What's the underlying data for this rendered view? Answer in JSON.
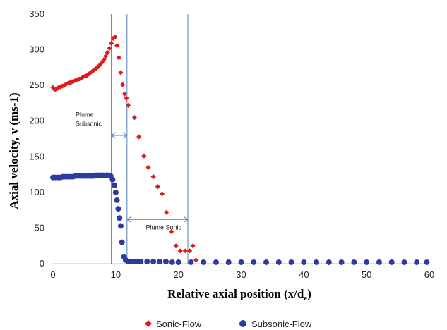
{
  "chart_data": {
    "type": "scatter",
    "xlabel_main": "Relative axial position (x/d",
    "xlabel_sub": "e",
    "xlabel_end": ")",
    "ylabel": "Axial velocity, v (ms-1)",
    "xlim": [
      0,
      60
    ],
    "ylim": [
      0,
      350
    ],
    "x_ticks": [
      "0",
      "10",
      "20",
      "30",
      "40",
      "50",
      "60"
    ],
    "y_ticks": [
      "0",
      "50",
      "100",
      "150",
      "200",
      "250",
      "300",
      "350"
    ],
    "grid": false,
    "legend_position": "bottom",
    "vertical_lines_x": [
      9.3,
      11.8,
      21.5
    ],
    "annotations": [
      {
        "text_lines": [
          "Plume",
          "Subsonic"
        ],
        "x": 3.6,
        "y": 206
      },
      {
        "text_lines": [
          "Plume Sonic"
        ],
        "x": 14.8,
        "y": 48
      }
    ],
    "arrows": [
      {
        "from": [
          9.3,
          180
        ],
        "to": [
          11.8,
          180
        ]
      },
      {
        "from": [
          11.8,
          62
        ],
        "to": [
          21.5,
          62
        ]
      }
    ],
    "series": [
      {
        "name": "Sonic-Flow",
        "marker": "diamond",
        "color": "#e31a1c",
        "x": [
          0.0,
          0.3,
          0.6,
          0.9,
          1.2,
          1.5,
          1.8,
          2.1,
          2.4,
          2.7,
          3.0,
          3.3,
          3.6,
          3.9,
          4.2,
          4.5,
          4.8,
          5.1,
          5.4,
          5.7,
          6.0,
          6.3,
          6.6,
          6.9,
          7.2,
          7.5,
          7.8,
          8.1,
          8.4,
          8.7,
          9.0,
          9.3,
          9.6,
          9.9,
          10.2,
          10.5,
          10.8,
          11.1,
          11.4,
          11.7,
          12.0,
          13.0,
          13.7,
          14.5,
          15.2,
          16.0,
          16.7,
          17.4,
          18.1,
          18.9,
          19.6,
          20.3,
          21.1,
          21.8,
          22.3,
          22.8
        ],
        "y": [
          247,
          244,
          245,
          247,
          248,
          249,
          250,
          252,
          253,
          254,
          255,
          256,
          257,
          258,
          259,
          260,
          262,
          263,
          264,
          266,
          268,
          270,
          272,
          274,
          276,
          279,
          282,
          286,
          291,
          296,
          302,
          309,
          316,
          318,
          306,
          289,
          268,
          251,
          238,
          232,
          222,
          205,
          178,
          151,
          135,
          122,
          108,
          98,
          72,
          45,
          25,
          18,
          18,
          18,
          25,
          5
        ]
      },
      {
        "name": "Subsonic-Flow",
        "marker": "circle",
        "color": "#2f3aa0",
        "x": [
          0.0,
          0.4,
          0.8,
          1.2,
          1.6,
          2.0,
          2.4,
          2.8,
          3.2,
          3.6,
          4.0,
          4.4,
          4.8,
          5.2,
          5.6,
          6.0,
          6.4,
          6.8,
          7.2,
          7.6,
          8.0,
          8.4,
          8.8,
          9.2,
          9.5,
          9.8,
          10.0,
          10.2,
          10.4,
          10.6,
          10.8,
          11.0,
          11.3,
          11.6,
          12.0,
          12.5,
          13.0,
          13.5,
          14.0,
          15.0,
          16.0,
          17.0,
          18.0,
          19.0,
          20.0,
          22.0,
          24.0,
          26.0,
          28.0,
          30.0,
          32.0,
          34.0,
          36.0,
          38.0,
          40.0,
          42.0,
          44.0,
          46.0,
          48.0,
          50.0,
          52.0,
          54.0,
          56.0,
          58.0,
          59.6
        ],
        "y": [
          121,
          121,
          121,
          121,
          122,
          122,
          122,
          122,
          122,
          123,
          123,
          123,
          123,
          123,
          123,
          123,
          123,
          124,
          124,
          124,
          124,
          124,
          124,
          123,
          118,
          110,
          100,
          89,
          77,
          64,
          53,
          30,
          10,
          5,
          3,
          3,
          3,
          3,
          3,
          3,
          3,
          3,
          3,
          2,
          2,
          2,
          2,
          2,
          2,
          2,
          2,
          2,
          2,
          2,
          2,
          2,
          2,
          2,
          2,
          2,
          2,
          2,
          2,
          2,
          2
        ]
      }
    ]
  }
}
